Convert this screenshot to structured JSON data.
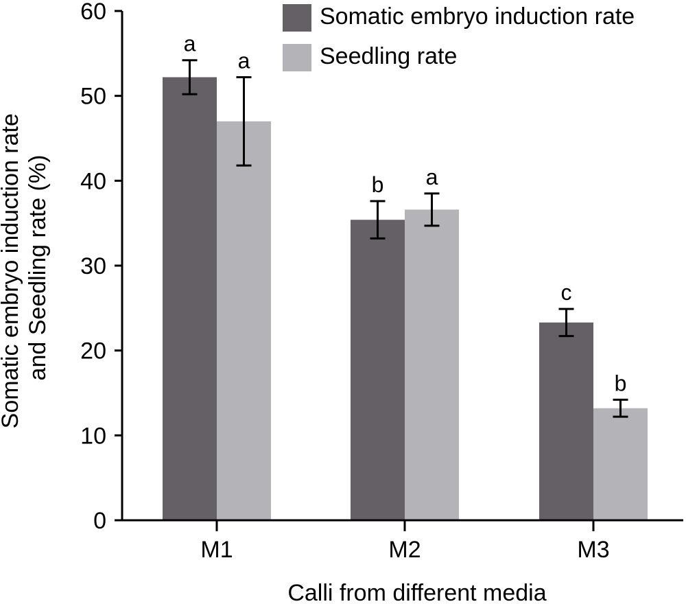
{
  "chart_data": {
    "type": "bar",
    "title": "",
    "xlabel": "Calli from different media",
    "ylabel_lines": [
      "Somatic embryo induction rate",
      "and Seedling rate (%)"
    ],
    "ylim": [
      0,
      60
    ],
    "yticks": [
      0,
      10,
      20,
      30,
      40,
      50,
      60
    ],
    "categories": [
      "M1",
      "M2",
      "M3"
    ],
    "legend_position": "top-right",
    "grid": false,
    "series": [
      {
        "name": "Somatic embryo induction rate",
        "color": "#656066",
        "values": [
          52.2,
          35.4,
          23.3
        ],
        "errors": [
          2.0,
          2.2,
          1.6
        ],
        "labels": [
          "a",
          "b",
          "c"
        ]
      },
      {
        "name": "Seedling rate",
        "color": "#b4b3b7",
        "values": [
          47.0,
          36.6,
          13.2
        ],
        "errors": [
          5.2,
          1.9,
          1.0
        ],
        "labels": [
          "a",
          "a",
          "b"
        ]
      }
    ]
  }
}
